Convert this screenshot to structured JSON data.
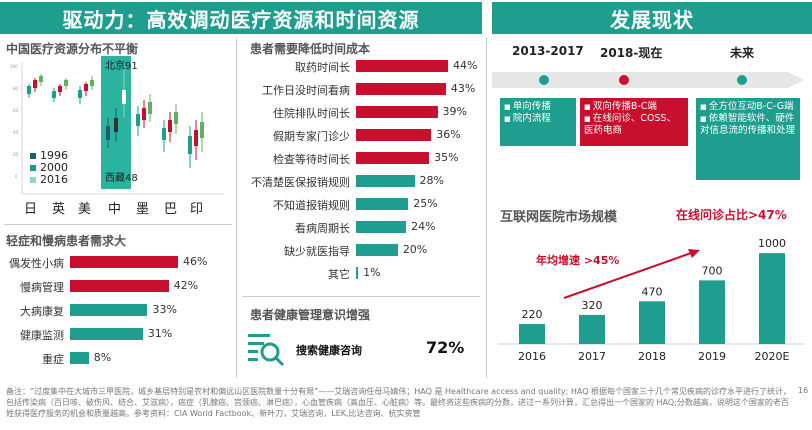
{
  "left_banner": "驱动力：高效调动医疗资源和时间资源",
  "right_banner": "发展现状",
  "china_resource": {
    "title": "中国医疗资源分布不平衡",
    "countries": [
      "日",
      "英",
      "美",
      "中",
      "墨",
      "巴",
      "印"
    ],
    "legend": [
      "1996",
      "2000",
      "2016"
    ],
    "annot_top": "北京91",
    "annot_bottom": "西藏48"
  },
  "demand": {
    "title": "轻症和慢病患者需求大",
    "items": [
      {
        "label": "偶发性小病",
        "value": 46,
        "text": "46%",
        "color": "#c8102e"
      },
      {
        "label": "慢病管理",
        "value": 42,
        "text": "42%",
        "color": "#c8102e"
      },
      {
        "label": "大病康复",
        "value": 33,
        "text": "33%",
        "color": "#1f9e8f"
      },
      {
        "label": "健康监测",
        "value": 31,
        "text": "31%",
        "color": "#1f9e8f"
      },
      {
        "label": "重症",
        "value": 8,
        "text": "8%",
        "color": "#1f9e8f"
      }
    ]
  },
  "time_cost": {
    "title": "患者需要降低时间成本",
    "items": [
      {
        "label": "取药时间长",
        "value": 44,
        "text": "44%",
        "color": "#c8102e"
      },
      {
        "label": "工作日没时间看病",
        "value": 43,
        "text": "43%",
        "color": "#c8102e"
      },
      {
        "label": "住院排队时间长",
        "value": 39,
        "text": "39%",
        "color": "#c8102e"
      },
      {
        "label": "假期专家门诊少",
        "value": 36,
        "text": "36%",
        "color": "#c8102e"
      },
      {
        "label": "检查等待时间长",
        "value": 35,
        "text": "35%",
        "color": "#c8102e"
      },
      {
        "label": "不清楚医保报销规则",
        "value": 28,
        "text": "28%",
        "color": "#1f9e8f"
      },
      {
        "label": "不知道报销规则",
        "value": 25,
        "text": "25%",
        "color": "#1f9e8f"
      },
      {
        "label": "看病周期长",
        "value": 24,
        "text": "24%",
        "color": "#1f9e8f"
      },
      {
        "label": "缺少就医指导",
        "value": 20,
        "text": "20%",
        "color": "#1f9e8f"
      },
      {
        "label": "其它",
        "value": 1,
        "text": "1%",
        "color": "#1f9e8f"
      }
    ]
  },
  "awareness": {
    "title": "患者健康管理意识增强",
    "label": "搜索健康咨询",
    "value": "72%",
    "icon": "search-list-icon"
  },
  "timeline": {
    "periods": [
      "2013-2017",
      "2018-现在",
      "未来"
    ],
    "boxes": [
      {
        "items": [
          "单向传播",
          "院内流程"
        ],
        "color": "#1f9e8f"
      },
      {
        "items": [
          "双向传播B-C端",
          "在线问诊、COSS、医药电商"
        ],
        "color": "#c8102e"
      },
      {
        "items": [
          "全方位互动B-C-G端",
          "依赖智能软件、硬件对信息流的传播和处理"
        ],
        "color": "#1f9e8f"
      }
    ]
  },
  "market": {
    "title": "互联网医院市场规模",
    "subtitle": "在线问诊占比>47%",
    "growth": "年均增速 >45%"
  },
  "chart_data": [
    {
      "type": "bar",
      "title": "互联网医院市场规模",
      "categories": [
        "2016",
        "2017",
        "2018",
        "2019",
        "2020E"
      ],
      "values": [
        220,
        320,
        470,
        700,
        1000
      ],
      "ylim": [
        0,
        1100
      ],
      "color": "#1f9e8f"
    }
  ],
  "footnote": "备注：“过度集中在大城市三甲医院，城乡基层特别是农村和偏远山区医院数量十分有限”——艾瑞咨询任母马婧伟；HAQ 是 Healthcare access and quality; HAQ 根据每个国家三十几个常见疾病的诊疗水平进行了统计，包括传染病（百日咳、破伤风、结合、艾滋病），癌症（乳腺癌、宫颈癌、淋巴癌），心血管疾病（高血压、心脏病）等。最终将这些疾病的分数，进过一系列计算，汇总得出一个国家的 HAQ;分数越高，说明这个国家的老百姓获得医疗服务的机会和质量越高。参考资料：CIA World Factbook、新叶刀，艾瑞咨询，LEK,比达咨询、杭实资管",
  "page_number": "16"
}
